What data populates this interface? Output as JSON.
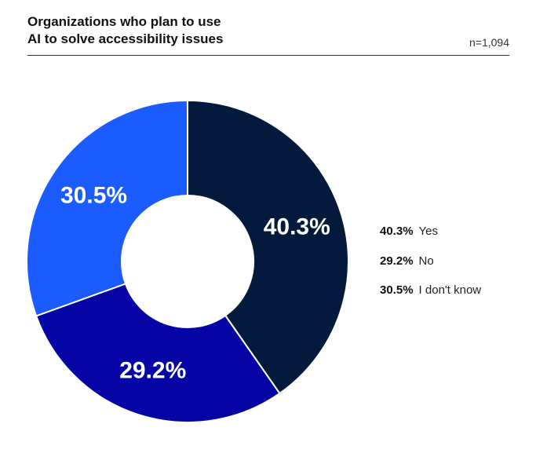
{
  "header": {
    "title_line1": "Organizations who plan to use",
    "title_line2": "AI to solve accessibility issues",
    "sample_size": "n=1,094"
  },
  "chart_data": {
    "type": "pie",
    "variant": "donut",
    "slices": [
      {
        "label": "Yes",
        "value": 40.3,
        "display": "40.3%",
        "color": "#031a3d"
      },
      {
        "label": "No",
        "value": 29.2,
        "display": "29.2%",
        "color": "#0505a5"
      },
      {
        "label": "I don't know",
        "value": 30.5,
        "display": "30.5%",
        "color": "#1a5cff"
      }
    ],
    "legend_position": "right"
  }
}
